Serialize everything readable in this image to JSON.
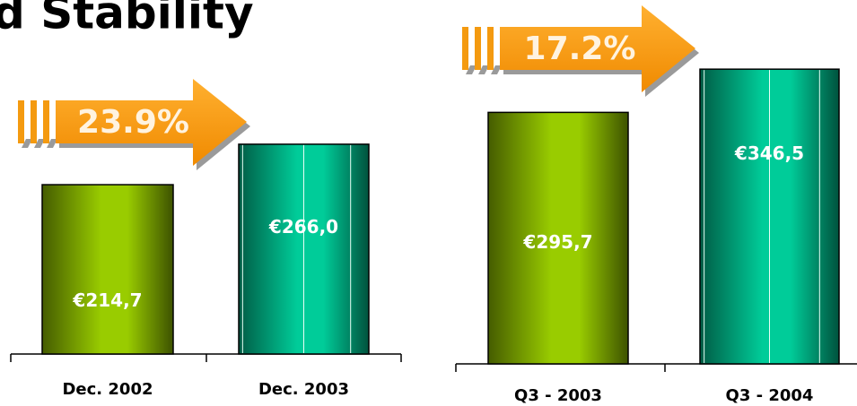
{
  "title": "d Stability",
  "chart_data": [
    {
      "type": "bar",
      "categories": [
        "Dec. 2002",
        "Dec. 2003"
      ],
      "values": [
        214.7,
        266.0
      ],
      "value_labels": [
        "€214,7",
        "€266,0"
      ],
      "colors": [
        "#99cc00",
        "#00cc99"
      ],
      "annotation": "23.9%"
    },
    {
      "type": "bar",
      "categories": [
        "Q3 - 2003",
        "Q3 - 2004"
      ],
      "values": [
        295.7,
        346.5
      ],
      "value_labels": [
        "€295,7",
        "€346,5"
      ],
      "colors": [
        "#99cc00",
        "#00cc99"
      ],
      "annotation": "17.2%"
    }
  ]
}
